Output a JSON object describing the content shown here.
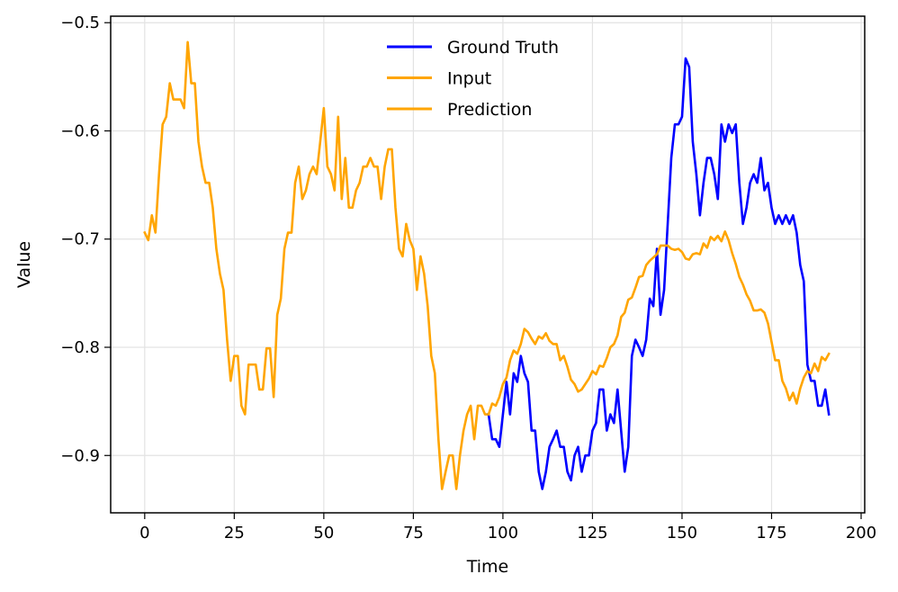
{
  "chart_data": {
    "type": "line",
    "title": "",
    "xlabel": "Time",
    "ylabel": "Value",
    "xlim": [
      -9.5,
      201
    ],
    "ylim": [
      -0.953,
      -0.494
    ],
    "xticks": [
      0,
      25,
      50,
      75,
      100,
      125,
      150,
      175,
      200
    ],
    "yticks": [
      -0.9,
      -0.8,
      -0.7,
      -0.6,
      -0.5
    ],
    "ytick_labels": [
      "−0.9",
      "−0.8",
      "−0.7",
      "−0.6",
      "−0.5"
    ],
    "grid": true,
    "legend_position": "top-center",
    "series": [
      {
        "name": "Ground Truth",
        "color": "#0000ff",
        "x": [
          96,
          97,
          98,
          99,
          100,
          101,
          102,
          103,
          104,
          105,
          106,
          107,
          108,
          109,
          110,
          111,
          112,
          113,
          114,
          115,
          116,
          117,
          118,
          119,
          120,
          121,
          122,
          123,
          124,
          125,
          126,
          127,
          128,
          129,
          130,
          131,
          132,
          133,
          134,
          135,
          136,
          137,
          138,
          139,
          140,
          141,
          142,
          143,
          144,
          145,
          146,
          147,
          148,
          149,
          150,
          151,
          152,
          153,
          154,
          155,
          156,
          157,
          158,
          159,
          160,
          161,
          162,
          163,
          164,
          165,
          166,
          167,
          168,
          169,
          170,
          171,
          172,
          173,
          174,
          175,
          176,
          177,
          178,
          179,
          180,
          181,
          182,
          183,
          184,
          185,
          186,
          187,
          188,
          189,
          190,
          191
        ],
        "y": [
          -0.862,
          -0.885,
          -0.885,
          -0.892,
          -0.862,
          -0.832,
          -0.862,
          -0.824,
          -0.832,
          -0.808,
          -0.824,
          -0.832,
          -0.877,
          -0.877,
          -0.915,
          -0.931,
          -0.915,
          -0.892,
          -0.885,
          -0.877,
          -0.892,
          -0.892,
          -0.915,
          -0.923,
          -0.9,
          -0.892,
          -0.915,
          -0.9,
          -0.9,
          -0.877,
          -0.87,
          -0.839,
          -0.839,
          -0.877,
          -0.862,
          -0.87,
          -0.839,
          -0.877,
          -0.915,
          -0.892,
          -0.808,
          -0.793,
          -0.8,
          -0.808,
          -0.793,
          -0.755,
          -0.762,
          -0.709,
          -0.77,
          -0.747,
          -0.686,
          -0.625,
          -0.594,
          -0.594,
          -0.587,
          -0.533,
          -0.541,
          -0.61,
          -0.64,
          -0.678,
          -0.648,
          -0.625,
          -0.625,
          -0.64,
          -0.663,
          -0.594,
          -0.61,
          -0.594,
          -0.602,
          -0.594,
          -0.648,
          -0.686,
          -0.671,
          -0.648,
          -0.64,
          -0.648,
          -0.625,
          -0.655,
          -0.648,
          -0.671,
          -0.686,
          -0.678,
          -0.686,
          -0.678,
          -0.686,
          -0.678,
          -0.694,
          -0.724,
          -0.739,
          -0.816,
          -0.831,
          -0.831,
          -0.854,
          -0.854,
          -0.839,
          -0.862
        ]
      },
      {
        "name": "Input",
        "color": "#ffa500",
        "x": [
          0,
          1,
          2,
          3,
          4,
          5,
          6,
          7,
          8,
          9,
          10,
          11,
          12,
          13,
          14,
          15,
          16,
          17,
          18,
          19,
          20,
          21,
          22,
          23,
          24,
          25,
          26,
          27,
          28,
          29,
          30,
          31,
          32,
          33,
          34,
          35,
          36,
          37,
          38,
          39,
          40,
          41,
          42,
          43,
          44,
          45,
          46,
          47,
          48,
          49,
          50,
          51,
          52,
          53,
          54,
          55,
          56,
          57,
          58,
          59,
          60,
          61,
          62,
          63,
          64,
          65,
          66,
          67,
          68,
          69,
          70,
          71,
          72,
          73,
          74,
          75,
          76,
          77,
          78,
          79,
          80,
          81,
          82,
          83,
          84,
          85,
          86,
          87,
          88,
          89,
          90,
          91,
          92,
          93,
          94,
          95,
          96
        ],
        "y": [
          -0.694,
          -0.701,
          -0.678,
          -0.694,
          -0.64,
          -0.594,
          -0.587,
          -0.556,
          -0.571,
          -0.571,
          -0.571,
          -0.579,
          -0.518,
          -0.556,
          -0.556,
          -0.61,
          -0.633,
          -0.648,
          -0.648,
          -0.671,
          -0.709,
          -0.732,
          -0.747,
          -0.793,
          -0.831,
          -0.808,
          -0.808,
          -0.854,
          -0.862,
          -0.816,
          -0.816,
          -0.816,
          -0.839,
          -0.839,
          -0.801,
          -0.801,
          -0.846,
          -0.77,
          -0.755,
          -0.709,
          -0.694,
          -0.694,
          -0.648,
          -0.633,
          -0.663,
          -0.655,
          -0.64,
          -0.633,
          -0.64,
          -0.61,
          -0.579,
          -0.633,
          -0.64,
          -0.655,
          -0.587,
          -0.663,
          -0.625,
          -0.671,
          -0.671,
          -0.655,
          -0.648,
          -0.633,
          -0.633,
          -0.625,
          -0.633,
          -0.633,
          -0.663,
          -0.633,
          -0.617,
          -0.617,
          -0.671,
          -0.709,
          -0.716,
          -0.686,
          -0.701,
          -0.709,
          -0.747,
          -0.716,
          -0.732,
          -0.762,
          -0.808,
          -0.824,
          -0.885,
          -0.931,
          -0.915,
          -0.9,
          -0.9,
          -0.931,
          -0.9,
          -0.877,
          -0.862,
          -0.854,
          -0.885,
          -0.854,
          -0.854,
          -0.862,
          -0.862
        ]
      },
      {
        "name": "Prediction",
        "color": "#ffa500",
        "x": [
          96,
          97,
          98,
          99,
          100,
          101,
          102,
          103,
          104,
          105,
          106,
          107,
          108,
          109,
          110,
          111,
          112,
          113,
          114,
          115,
          116,
          117,
          118,
          119,
          120,
          121,
          122,
          123,
          124,
          125,
          126,
          127,
          128,
          129,
          130,
          131,
          132,
          133,
          134,
          135,
          136,
          137,
          138,
          139,
          140,
          141,
          142,
          143,
          144,
          145,
          146,
          147,
          148,
          149,
          150,
          151,
          152,
          153,
          154,
          155,
          156,
          157,
          158,
          159,
          160,
          161,
          162,
          163,
          164,
          165,
          166,
          167,
          168,
          169,
          170,
          171,
          172,
          173,
          174,
          175,
          176,
          177,
          178,
          179,
          180,
          181,
          182,
          183,
          184,
          185,
          186,
          187,
          188,
          189,
          190,
          191
        ],
        "y": [
          -0.862,
          -0.852,
          -0.854,
          -0.846,
          -0.834,
          -0.828,
          -0.812,
          -0.803,
          -0.806,
          -0.797,
          -0.783,
          -0.786,
          -0.792,
          -0.797,
          -0.79,
          -0.792,
          -0.787,
          -0.794,
          -0.797,
          -0.797,
          -0.812,
          -0.808,
          -0.818,
          -0.83,
          -0.834,
          -0.841,
          -0.839,
          -0.834,
          -0.829,
          -0.822,
          -0.825,
          -0.817,
          -0.818,
          -0.81,
          -0.8,
          -0.797,
          -0.789,
          -0.772,
          -0.768,
          -0.756,
          -0.754,
          -0.745,
          -0.735,
          -0.734,
          -0.724,
          -0.72,
          -0.717,
          -0.714,
          -0.706,
          -0.706,
          -0.706,
          -0.709,
          -0.71,
          -0.709,
          -0.712,
          -0.718,
          -0.719,
          -0.714,
          -0.713,
          -0.714,
          -0.704,
          -0.708,
          -0.698,
          -0.701,
          -0.697,
          -0.702,
          -0.693,
          -0.701,
          -0.713,
          -0.723,
          -0.735,
          -0.742,
          -0.751,
          -0.757,
          -0.766,
          -0.766,
          -0.765,
          -0.768,
          -0.778,
          -0.795,
          -0.812,
          -0.812,
          -0.831,
          -0.838,
          -0.849,
          -0.842,
          -0.852,
          -0.838,
          -0.828,
          -0.822,
          -0.824,
          -0.815,
          -0.822,
          -0.809,
          -0.812,
          -0.806
        ]
      }
    ]
  }
}
